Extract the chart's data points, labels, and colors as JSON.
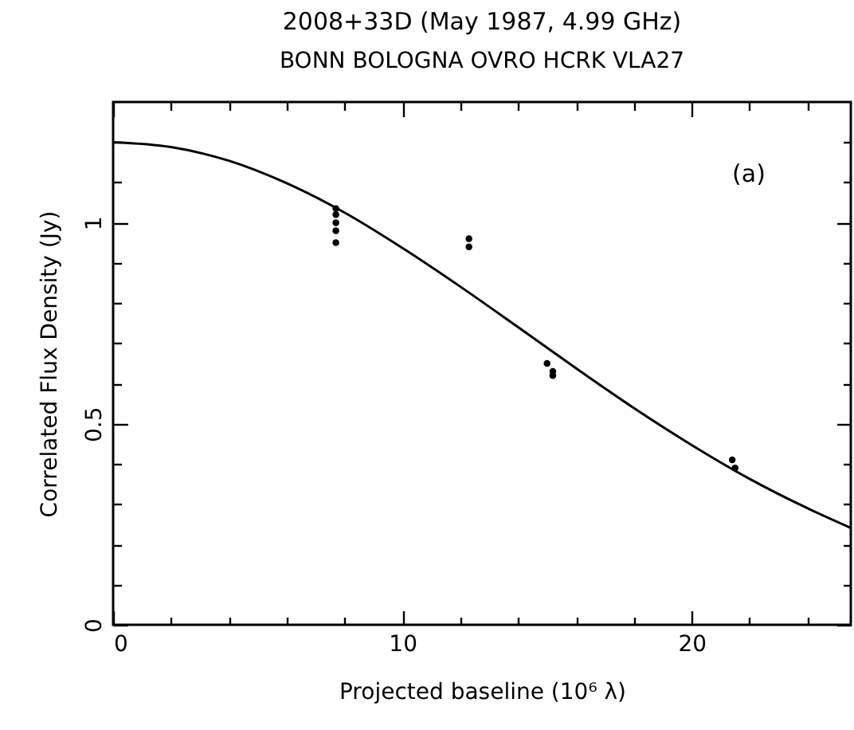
{
  "chart_data": {
    "type": "scatter",
    "title": "2008+33D  (May 1987,  4.99 GHz)",
    "subtitle": "BONN BOLOGNA OVRO HCRK VLA27",
    "xlabel": "Projected baseline (10⁶ λ)",
    "ylabel": "Correlated Flux Density (Jy)",
    "annotations": [
      "(a)"
    ],
    "xlim": [
      0,
      25.5
    ],
    "ylim": [
      0,
      1.3
    ],
    "xticks": [
      0,
      {
        "value": 2,
        "label": null
      },
      {
        "value": 4,
        "label": null
      },
      {
        "value": 6,
        "label": null
      },
      {
        "value": 8,
        "label": null
      },
      10,
      {
        "value": 12,
        "label": null
      },
      {
        "value": 14,
        "label": null
      },
      {
        "value": 16,
        "label": null
      },
      {
        "value": 18,
        "label": null
      },
      20,
      {
        "value": 22,
        "label": null
      },
      {
        "value": 24,
        "label": null
      }
    ],
    "yticks": [
      0,
      {
        "value": 0.1,
        "label": null
      },
      {
        "value": 0.2,
        "label": null
      },
      {
        "value": 0.3,
        "label": null
      },
      {
        "value": 0.4,
        "label": null
      },
      0.5,
      {
        "value": 0.6,
        "label": null
      },
      {
        "value": 0.7,
        "label": null
      },
      {
        "value": 0.8,
        "label": null
      },
      {
        "value": 0.9,
        "label": null
      },
      1,
      {
        "value": 1.1,
        "label": null
      },
      {
        "value": 1.2,
        "label": null
      }
    ],
    "series": [
      {
        "marker": "circle",
        "color": "#000000",
        "x": [
          7.7,
          7.7,
          7.7,
          7.7,
          7.7,
          12.3,
          12.3,
          15.0,
          15.2,
          15.2,
          21.4,
          21.5
        ],
        "values": [
          1.035,
          1.02,
          1.0,
          0.98,
          0.95,
          0.96,
          0.94,
          0.65,
          0.63,
          0.62,
          0.41,
          0.39
        ]
      },
      {
        "type": "line",
        "color": "#000000",
        "line_style": "solid",
        "x": [
          0,
          2,
          4,
          6,
          8,
          10,
          12,
          14,
          16,
          18,
          20,
          22,
          24,
          25.5
        ],
        "values": [
          1.2,
          1.188,
          1.154,
          1.098,
          1.025,
          0.937,
          0.841,
          0.74,
          0.638,
          0.539,
          0.447,
          0.363,
          0.29,
          0.241
        ]
      }
    ]
  }
}
